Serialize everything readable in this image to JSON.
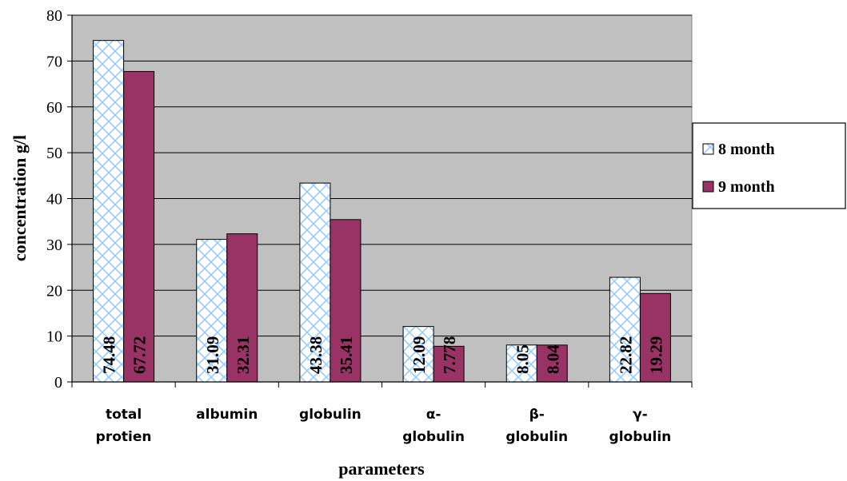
{
  "chart_data": {
    "type": "bar",
    "title": "",
    "xlabel": "parameters",
    "ylabel": "concentration g/l",
    "ylim": [
      0,
      80
    ],
    "yticks": [
      0,
      10,
      20,
      30,
      40,
      50,
      60,
      70,
      80
    ],
    "grid": true,
    "legend_position": "right",
    "categories": [
      [
        "total",
        "protien"
      ],
      [
        "albumin"
      ],
      [
        "globulin"
      ],
      [
        "α-",
        "globulin"
      ],
      [
        "β-",
        "globulin"
      ],
      [
        "γ-",
        "globulin"
      ]
    ],
    "series": [
      {
        "name": "8 month",
        "values": [
          74.48,
          31.09,
          43.38,
          12.09,
          8.05,
          22.82
        ],
        "labels": [
          "74.48",
          "31.09",
          "43.38",
          "12.09",
          "8.05",
          "22.82"
        ],
        "color": "#ffffff",
        "pattern": "crosshatch-blue"
      },
      {
        "name": "9 month",
        "values": [
          67.72,
          32.31,
          35.41,
          7.778,
          8.04,
          19.29
        ],
        "labels": [
          "67.72",
          "32.31",
          "35.41",
          "7.778",
          "8.04",
          "19.29"
        ],
        "color": "#993366"
      }
    ],
    "colors": {
      "plot_background": "#c0c0c0",
      "hatch": "#99ccff",
      "series2": "#993366"
    }
  }
}
